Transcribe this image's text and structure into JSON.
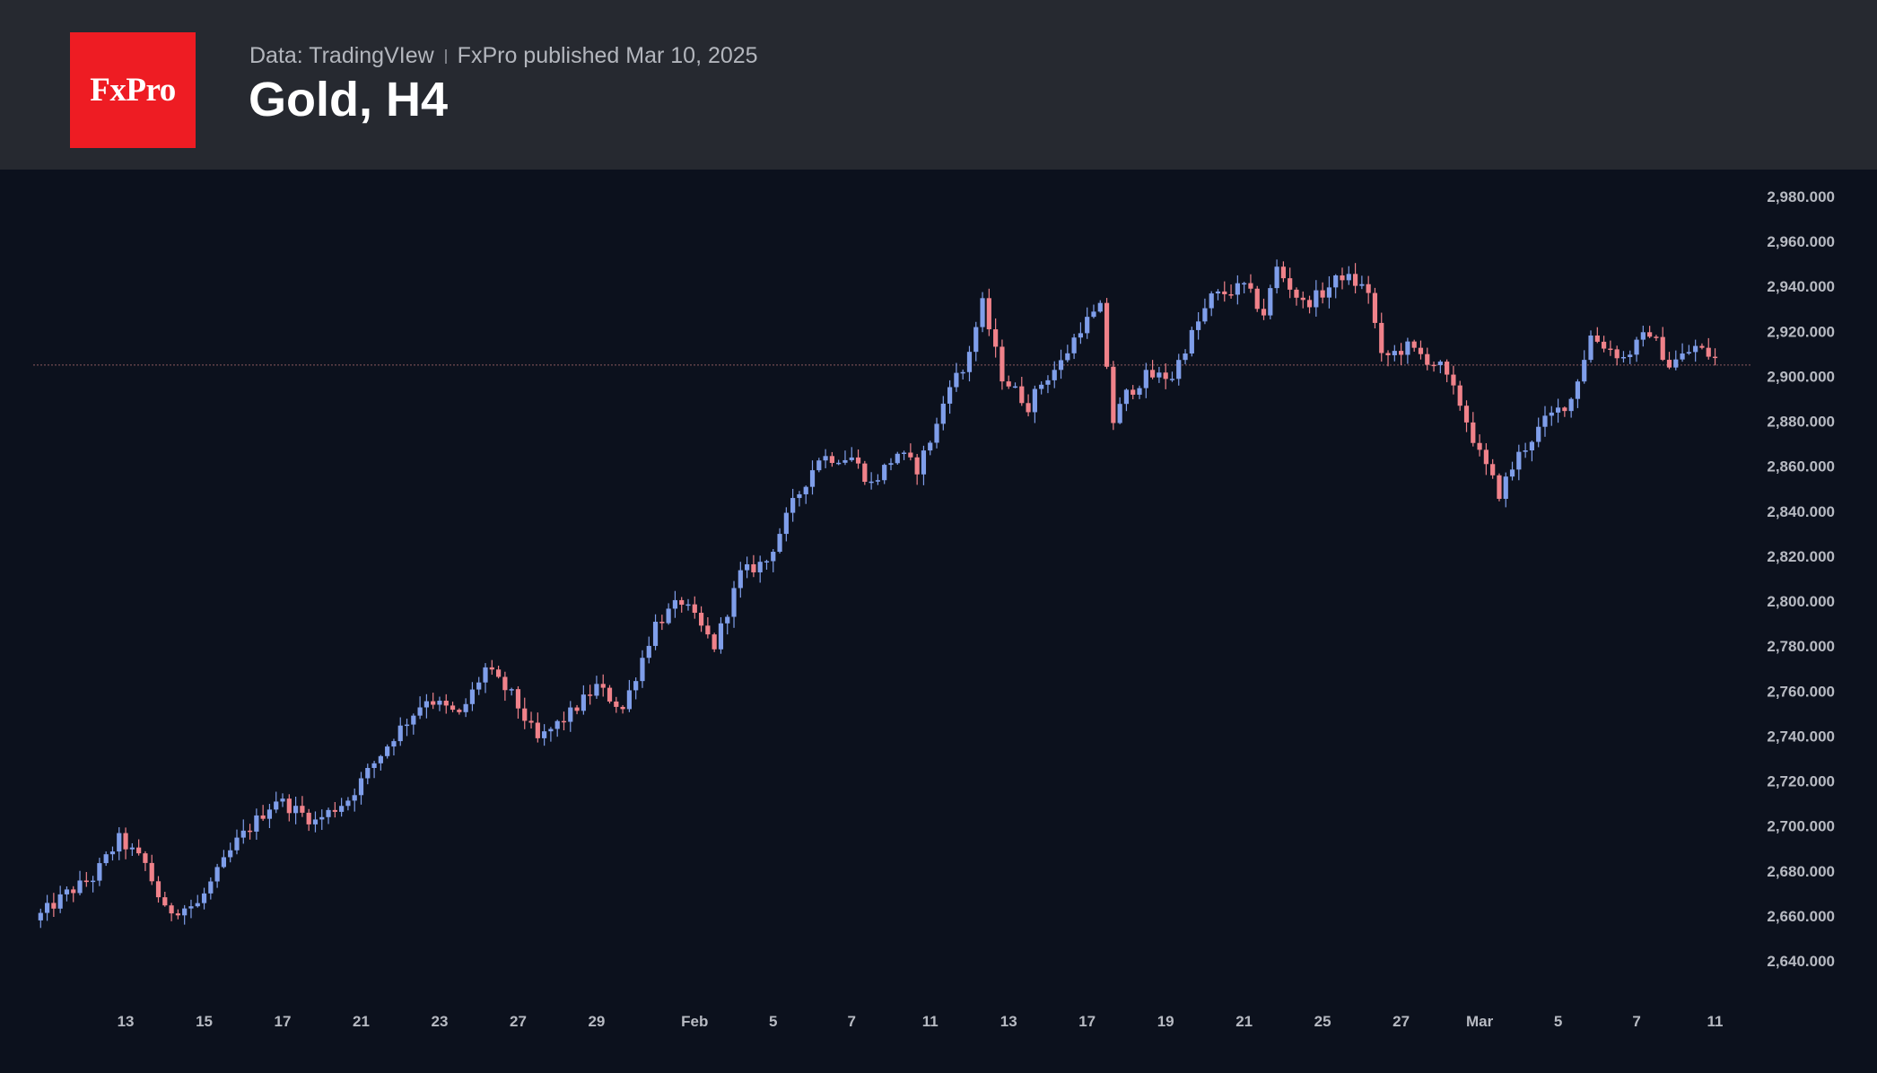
{
  "header": {
    "logo_text": "FxPro",
    "source": "Data: TradingVIew",
    "published": "FxPro published Mar 10, 2025",
    "title": "Gold, H4"
  },
  "colors": {
    "background": "#0c111d",
    "header_background": "#262930",
    "logo_background": "#ee1c23",
    "bullish": "#7f9eea",
    "bearish": "#f0828a",
    "price_line": "#8a5a5e",
    "axis_text": "#b7bac2"
  },
  "chart_data": {
    "type": "candlestick",
    "title": "Gold, H4",
    "xlabel": "",
    "ylabel": "",
    "ylim": [
      2630,
      2990
    ],
    "y_ticks": [
      2640,
      2660,
      2680,
      2700,
      2720,
      2740,
      2760,
      2780,
      2800,
      2820,
      2840,
      2860,
      2880,
      2900,
      2920,
      2940,
      2960,
      2980
    ],
    "y_tick_labels": [
      "2,640.000",
      "2,660.000",
      "2,680.000",
      "2,700.000",
      "2,720.000",
      "2,740.000",
      "2,760.000",
      "2,780.000",
      "2,800.000",
      "2,820.000",
      "2,840.000",
      "2,860.000",
      "2,880.000",
      "2,900.000",
      "2,920.000",
      "2,940.000",
      "2,960.000",
      "2,980.000"
    ],
    "x_tick_labels": [
      "13",
      "15",
      "17",
      "21",
      "23",
      "27",
      "29",
      "Feb",
      "5",
      "7",
      "11",
      "13",
      "17",
      "19",
      "21",
      "25",
      "27",
      "Mar",
      "5",
      "7",
      "11"
    ],
    "x_tick_candle_index": [
      14,
      26,
      38,
      50,
      62,
      74,
      86,
      101,
      113,
      125,
      137,
      149,
      161,
      173,
      185,
      197,
      209,
      221,
      233,
      245,
      257
    ],
    "last_price_line": 2905,
    "grid": false,
    "candle_count": 257,
    "anchors": [
      [
        0,
        2658
      ],
      [
        5,
        2670
      ],
      [
        9,
        2677
      ],
      [
        13,
        2694
      ],
      [
        17,
        2683
      ],
      [
        20,
        2662
      ],
      [
        25,
        2665
      ],
      [
        31,
        2693
      ],
      [
        37,
        2712
      ],
      [
        43,
        2702
      ],
      [
        48,
        2712
      ],
      [
        55,
        2740
      ],
      [
        60,
        2757
      ],
      [
        65,
        2749
      ],
      [
        69,
        2770
      ],
      [
        73,
        2758
      ],
      [
        77,
        2738
      ],
      [
        82,
        2750
      ],
      [
        86,
        2762
      ],
      [
        90,
        2752
      ],
      [
        95,
        2790
      ],
      [
        99,
        2800
      ],
      [
        104,
        2780
      ],
      [
        108,
        2812
      ],
      [
        112,
        2818
      ],
      [
        116,
        2843
      ],
      [
        120,
        2864
      ],
      [
        125,
        2864
      ],
      [
        128,
        2852
      ],
      [
        132,
        2866
      ],
      [
        135,
        2859
      ],
      [
        138,
        2878
      ],
      [
        140,
        2898
      ],
      [
        142,
        2902
      ],
      [
        145,
        2932
      ],
      [
        148,
        2900
      ],
      [
        152,
        2887
      ],
      [
        154,
        2897
      ],
      [
        157,
        2906
      ],
      [
        160,
        2922
      ],
      [
        163,
        2930
      ],
      [
        165,
        2880
      ],
      [
        167,
        2892
      ],
      [
        170,
        2900
      ],
      [
        174,
        2900
      ],
      [
        176,
        2913
      ],
      [
        180,
        2935
      ],
      [
        185,
        2940
      ],
      [
        188,
        2928
      ],
      [
        190,
        2948
      ],
      [
        194,
        2932
      ],
      [
        197,
        2937
      ],
      [
        200,
        2945
      ],
      [
        204,
        2938
      ],
      [
        206,
        2908
      ],
      [
        210,
        2913
      ],
      [
        215,
        2904
      ],
      [
        218,
        2888
      ],
      [
        221,
        2865
      ],
      [
        224,
        2848
      ],
      [
        227,
        2865
      ],
      [
        231,
        2880
      ],
      [
        235,
        2890
      ],
      [
        238,
        2918
      ],
      [
        243,
        2908
      ],
      [
        247,
        2920
      ],
      [
        250,
        2905
      ],
      [
        254,
        2913
      ],
      [
        257,
        2908
      ]
    ]
  }
}
